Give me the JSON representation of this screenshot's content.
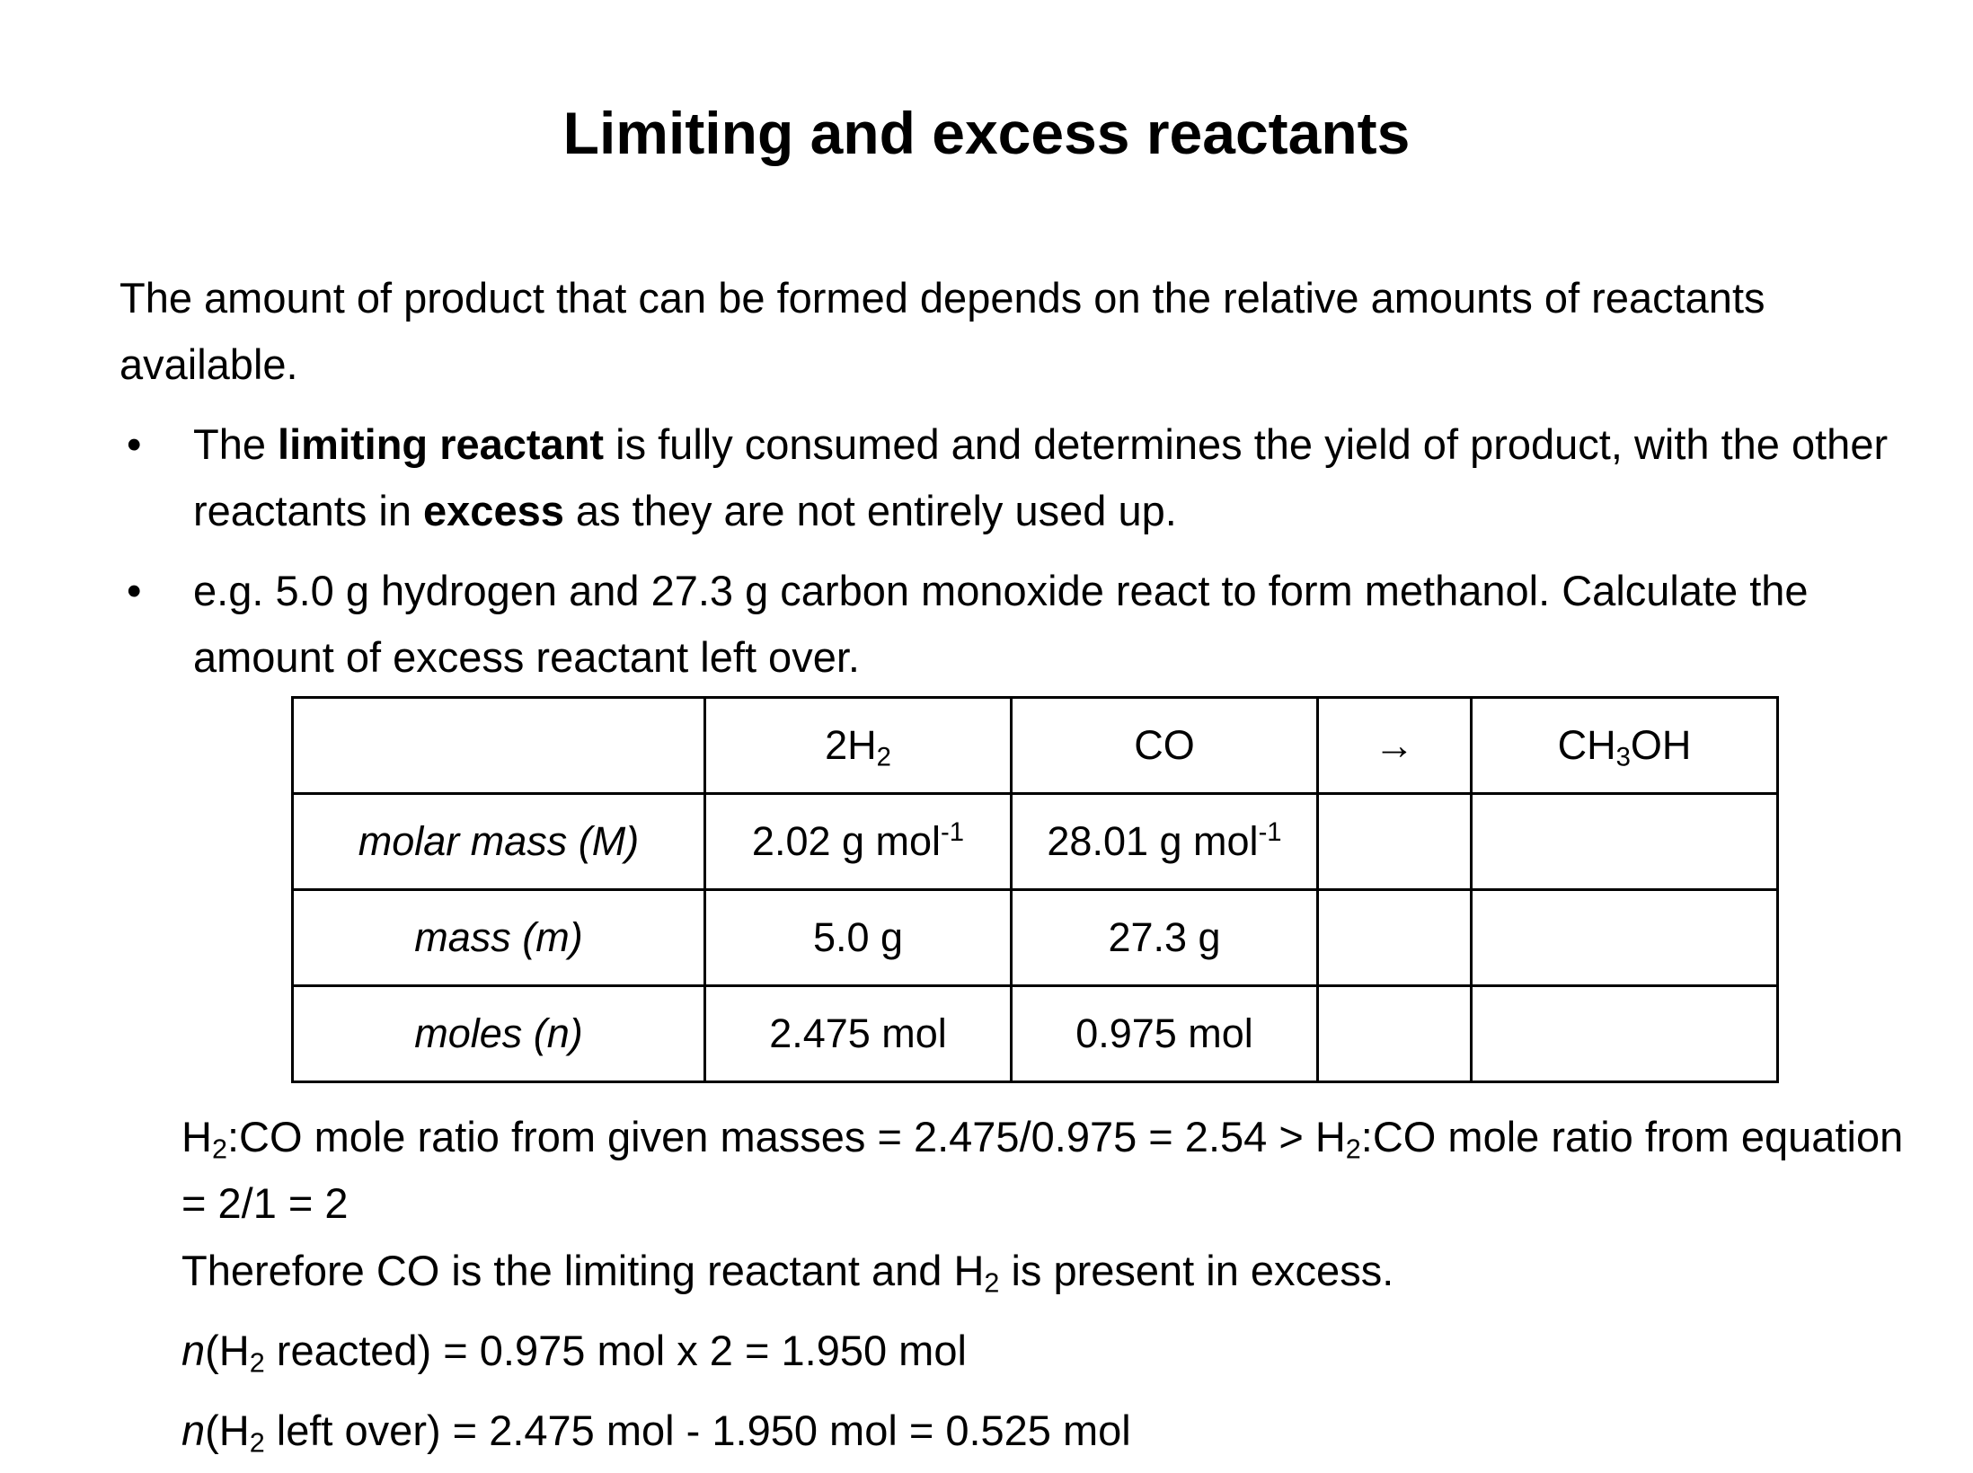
{
  "title": "Limiting and excess reactants",
  "intro": "The amount of product that can be formed depends on the relative amounts of reactants available.",
  "bullets": [
    [
      "The ",
      "limiting reactant",
      " is fully consumed and determines the yield of product, with the other reactants in ",
      "excess",
      " as they are not entirely used up."
    ],
    [
      "e.g. 5.0 g hydrogen and 27.3 g carbon monoxide react to form methanol. Calculate the amount of excess reactant left over."
    ]
  ],
  "table": {
    "header": [
      [
        "2H",
        "2"
      ],
      [
        "CO"
      ],
      [
        "→"
      ],
      [
        "CH",
        "3",
        "OH"
      ]
    ],
    "rows": [
      [
        "molar mass (M)",
        [
          "2.02 g mol",
          "-1"
        ],
        [
          "28.01 g mol",
          "-1"
        ]
      ],
      [
        "mass (m)",
        "5.0 g",
        "27.3 g"
      ],
      [
        "moles (n)",
        "2.475 mol",
        "0.975 mol"
      ]
    ]
  },
  "calculation": [
    [
      "H",
      "2",
      ":CO mole ratio from given masses = 2.475/0.975 = 2.54 > H",
      "2",
      ":CO mole ratio from equation = 2/1 = 2"
    ],
    [
      "Therefore CO is the limiting reactant and H",
      "2",
      " is present in excess."
    ],
    [
      "n",
      "(H",
      "2",
      " reacted) = 0.975 mol x 2 = 1.950 mol"
    ],
    [
      "n",
      "(H",
      "2",
      " left over) = 2.475 mol - 1.950 mol = 0.525 mol"
    ]
  ]
}
